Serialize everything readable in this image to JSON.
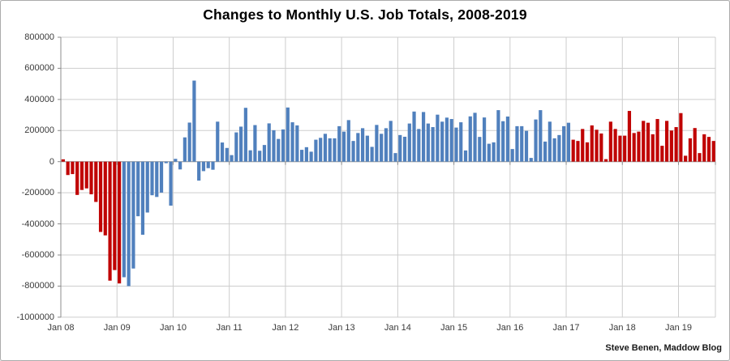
{
  "title": "Changes to Monthly U.S. Job Totals, 2008-2019",
  "footer": {
    "credit": "Steve Benen, Maddow Blog"
  },
  "colors": {
    "red": "#c00404",
    "blue": "#5080bd",
    "gridline": "#cdcdcd",
    "zero_axis": "#9a9a9a",
    "left_axis": "#8c8c8c",
    "tick": "#8c8c8c",
    "background": "#ffffff",
    "border": "#ababab",
    "title_text": "#000000",
    "axis_text": "#3a3a3a"
  },
  "chart_data": {
    "type": "bar",
    "title": "Changes to Monthly U.S. Job Totals, 2008-2019",
    "xlabel": "",
    "ylabel": "",
    "x_start": "2008-01",
    "x_end": "2019-08",
    "ylim": [
      -1000000,
      800000
    ],
    "y_tick_step": 200000,
    "grid": true,
    "legend": "none",
    "y_tick_labels": [
      "800000",
      "600000",
      "400000",
      "200000",
      "0",
      "-200000",
      "-400000",
      "-600000",
      "-800000",
      "-1000000"
    ],
    "x_tick_labels": [
      "Jan 08",
      "Jan 09",
      "Jan 10",
      "Jan 11",
      "Jan 12",
      "Jan 13",
      "Jan 14",
      "Jan 15",
      "Jan 16",
      "Jan 17",
      "Jan 18",
      "Jan 19"
    ],
    "segments": [
      {
        "period": "Jan 2008 - Jan 2009",
        "color_key": "red",
        "values": [
          15000,
          -86000,
          -80000,
          -214000,
          -182000,
          -172000,
          -210000,
          -259000,
          -452000,
          -474000,
          -765000,
          -697000,
          -783000
        ]
      },
      {
        "period": "Feb 2009 - Jan 2017",
        "color_key": "blue",
        "values": [
          -743000,
          -800000,
          -687000,
          -351000,
          -470000,
          -327000,
          -216000,
          -227000,
          -199000,
          -10000,
          -283000,
          18000,
          -50000,
          156000,
          251000,
          521000,
          -122000,
          -61000,
          -42000,
          -52000,
          257000,
          123000,
          88000,
          42000,
          188000,
          225000,
          346000,
          73000,
          235000,
          70000,
          107000,
          246000,
          202000,
          146000,
          207000,
          348000,
          253000,
          233000,
          76000,
          93000,
          64000,
          141000,
          153000,
          179000,
          150000,
          150000,
          228000,
          193000,
          267000,
          133000,
          184000,
          215000,
          167000,
          95000,
          236000,
          179000,
          215000,
          262000,
          55000,
          171000,
          160000,
          245000,
          322000,
          210000,
          319000,
          245000,
          222000,
          302000,
          257000,
          283000,
          274000,
          219000,
          253000,
          72000,
          291000,
          314000,
          159000,
          284000,
          115000,
          124000,
          331000,
          260000,
          290000,
          81000,
          228000,
          228000,
          198000,
          24000,
          271000,
          331000,
          129000,
          257000,
          150000,
          171000,
          228000,
          250000
        ]
      },
      {
        "period": "Feb 2017 - Aug 2019",
        "color_key": "red",
        "values": [
          141000,
          133000,
          210000,
          124000,
          233000,
          205000,
          181000,
          16000,
          257000,
          210000,
          167000,
          167000,
          326000,
          184000,
          193000,
          262000,
          250000,
          176000,
          274000,
          102000,
          262000,
          200000,
          222000,
          312000,
          38000,
          150000,
          216000,
          55000,
          176000,
          159000,
          133000
        ]
      }
    ]
  }
}
